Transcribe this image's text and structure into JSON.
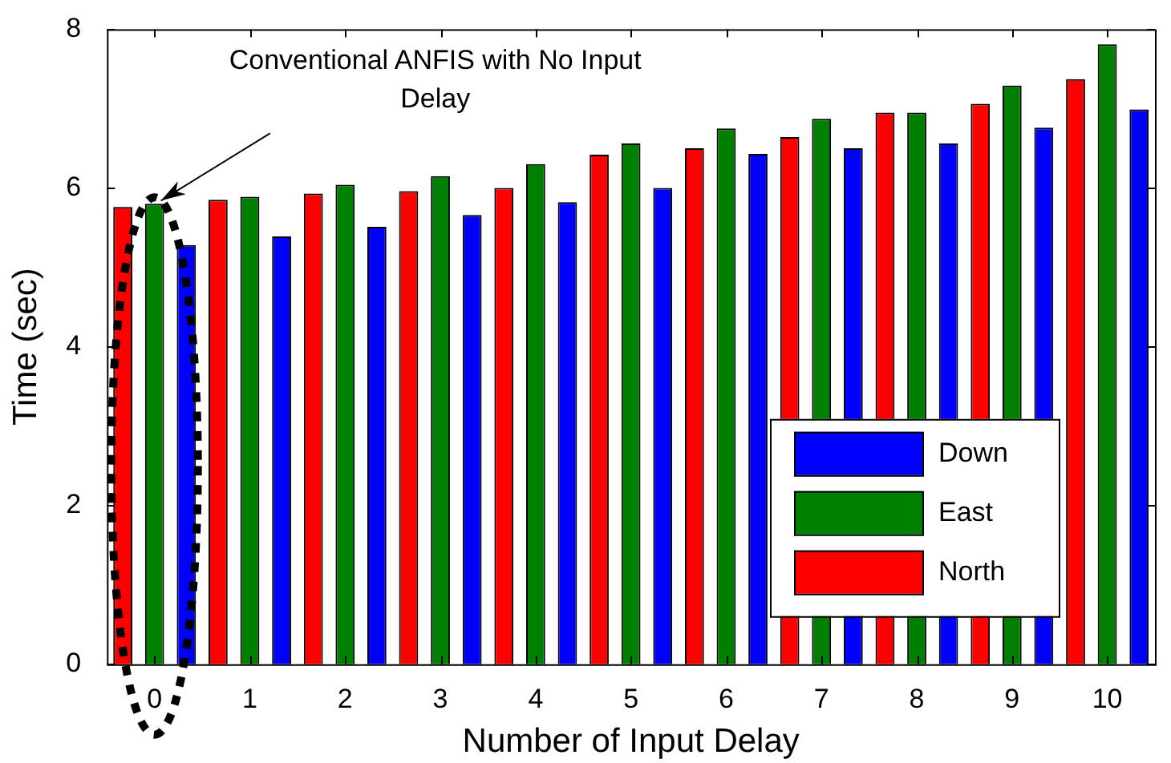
{
  "chart_data": {
    "type": "bar",
    "xlabel": "Number of Input Delay",
    "ylabel": "Time (sec)",
    "categories": [
      "0",
      "1",
      "2",
      "3",
      "4",
      "5",
      "6",
      "7",
      "8",
      "9",
      "10"
    ],
    "series": [
      {
        "name": "North",
        "color": "#ff0000",
        "values": [
          5.76,
          5.85,
          5.93,
          5.96,
          6.0,
          6.42,
          6.5,
          6.64,
          6.95,
          7.06,
          7.37
        ]
      },
      {
        "name": "East",
        "color": "#008000",
        "values": [
          5.8,
          5.89,
          6.04,
          6.15,
          6.3,
          6.56,
          6.75,
          6.87,
          6.95,
          7.29,
          7.81
        ]
      },
      {
        "name": "Down",
        "color": "#0000ff",
        "values": [
          5.28,
          5.39,
          5.51,
          5.66,
          5.82,
          6.0,
          6.43,
          6.5,
          6.56,
          6.76,
          6.99
        ]
      }
    ],
    "ylim": [
      0,
      8
    ],
    "yticks": [
      0,
      2,
      4,
      6,
      8
    ],
    "grid": false,
    "legend": "bottom right",
    "annotations": [
      {
        "text": "Conventional ANFIS with No Input Delay",
        "x": "0",
        "y": 5.8
      }
    ]
  }
}
